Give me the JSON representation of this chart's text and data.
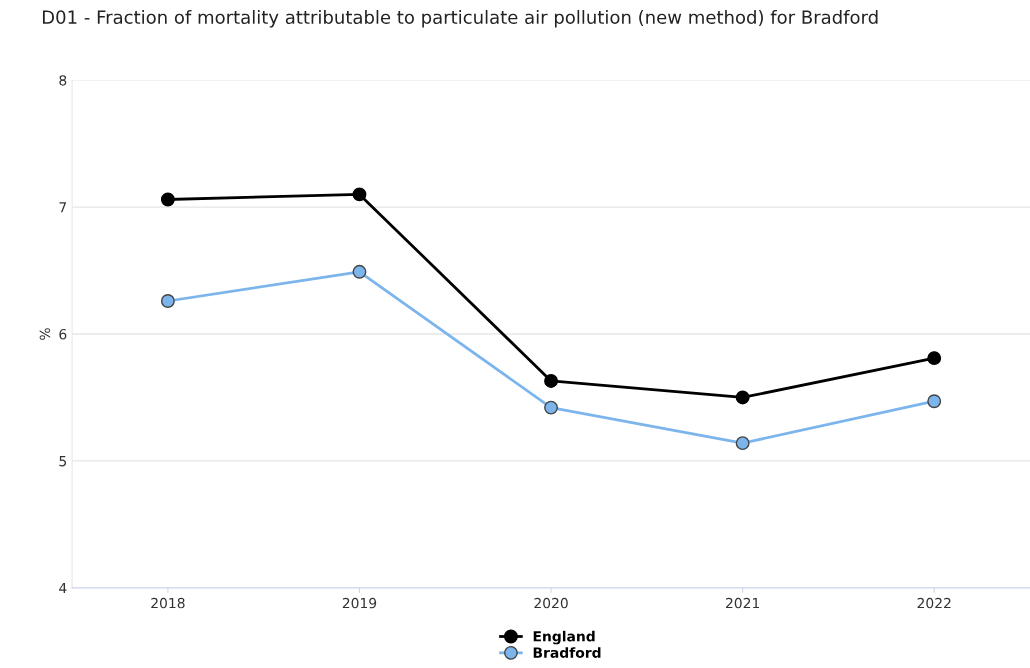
{
  "chart_data": {
    "type": "line",
    "title": "D01 - Fraction of mortality attributable to particulate air pollution (new method) for Bradford",
    "ylabel": "%",
    "categories": [
      "2018",
      "2019",
      "2020",
      "2021",
      "2022"
    ],
    "series": [
      {
        "name": "England",
        "color": "#000000",
        "values": [
          7.06,
          7.1,
          5.63,
          5.5,
          5.81
        ]
      },
      {
        "name": "Bradford",
        "color": "#7cb5ec",
        "values": [
          6.26,
          6.49,
          5.42,
          5.14,
          5.47
        ]
      }
    ],
    "ylim": [
      4,
      8
    ],
    "yticks": [
      4,
      5,
      6,
      7,
      8
    ],
    "grid": "y",
    "legend": "bottom",
    "marker": "circle",
    "line_style": "solid"
  }
}
